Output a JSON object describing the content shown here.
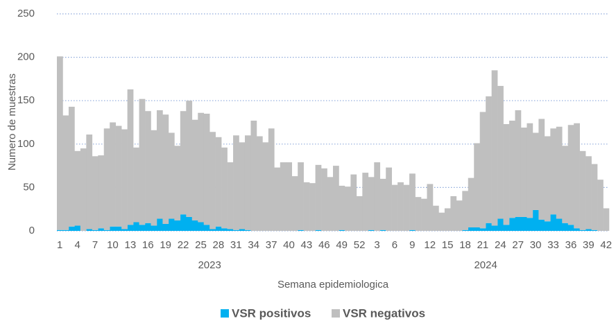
{
  "chart_data": {
    "type": "stacked_bar",
    "y_label": "Numero de muestras",
    "x_label": "Semana epidemiologica",
    "categories": [
      "1",
      null,
      null,
      "4",
      null,
      null,
      "7",
      null,
      null,
      "10",
      null,
      null,
      "13",
      null,
      null,
      "16",
      null,
      null,
      "19",
      null,
      null,
      "22",
      null,
      null,
      "25",
      null,
      null,
      "28",
      null,
      null,
      "31",
      null,
      null,
      "34",
      null,
      null,
      "37",
      null,
      null,
      "40",
      null,
      null,
      "43",
      null,
      null,
      "46",
      null,
      null,
      "49",
      null,
      null,
      "52",
      null,
      null,
      "3",
      null,
      null,
      "6",
      null,
      null,
      "9",
      null,
      null,
      "12",
      null,
      null,
      "15",
      null,
      null,
      "18",
      null,
      null,
      "21",
      null,
      null,
      "24",
      null,
      null,
      "27",
      null,
      null,
      "30",
      null,
      null,
      "33",
      null,
      null,
      "36",
      null,
      null,
      "39",
      null,
      null,
      "42"
    ],
    "groups": [
      {
        "name": "2023",
        "size": 52
      },
      {
        "name": "2024",
        "size": 42
      }
    ],
    "series": [
      {
        "name": "VSR positivos",
        "color": "#00b0f0",
        "values": [
          1,
          1,
          5,
          6,
          0,
          2,
          1,
          3,
          1,
          5,
          5,
          2,
          7,
          10,
          7,
          9,
          6,
          14,
          8,
          14,
          12,
          19,
          16,
          12,
          10,
          7,
          2,
          5,
          3,
          2,
          1,
          2,
          1,
          0,
          0,
          0,
          0,
          0,
          0,
          0,
          0,
          1,
          0,
          0,
          1,
          0,
          0,
          0,
          1,
          0,
          0,
          0,
          0,
          1,
          0,
          1,
          0,
          0,
          0,
          0,
          1,
          0,
          0,
          0,
          0,
          0,
          0,
          0,
          0,
          1,
          4,
          4,
          3,
          9,
          6,
          14,
          7,
          15,
          16,
          16,
          15,
          24,
          13,
          11,
          19,
          14,
          9,
          7,
          3,
          1,
          2,
          1,
          0,
          0
        ]
      },
      {
        "name": "VSR negativos",
        "color": "#bfbfbf",
        "values": [
          200,
          132,
          138,
          86,
          95,
          109,
          85,
          84,
          117,
          120,
          116,
          115,
          156,
          86,
          145,
          129,
          110,
          125,
          126,
          99,
          86,
          119,
          134,
          116,
          126,
          128,
          112,
          103,
          93,
          77,
          109,
          100,
          109,
          127,
          109,
          102,
          118,
          73,
          79,
          79,
          63,
          78,
          56,
          55,
          75,
          72,
          62,
          75,
          51,
          51,
          65,
          40,
          67,
          61,
          79,
          59,
          73,
          53,
          56,
          53,
          65,
          39,
          37,
          54,
          29,
          21,
          26,
          40,
          35,
          45,
          57,
          97,
          134,
          146,
          179,
          153,
          116,
          112,
          123,
          103,
          109,
          89,
          116,
          98,
          99,
          106,
          89,
          115,
          121,
          91,
          84,
          76,
          59,
          26
        ]
      }
    ],
    "ylim": [
      0,
      250
    ],
    "yticks": [
      0,
      50,
      100,
      150,
      200,
      250
    ],
    "grid": true,
    "legend": "bottom"
  }
}
